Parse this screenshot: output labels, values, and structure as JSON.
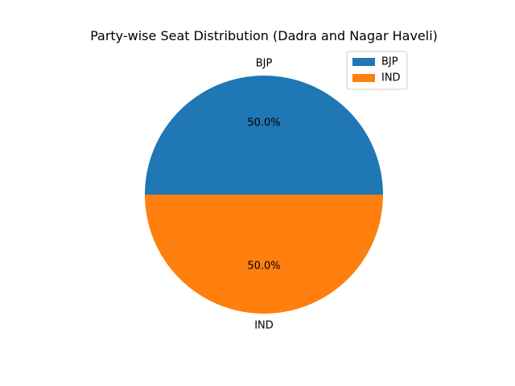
{
  "chart_data": {
    "type": "pie",
    "title": "Party-wise Seat Distribution (Dadra and Nagar Haveli)",
    "slices": [
      {
        "label": "BJP",
        "value": 1,
        "percent_label": "50.0%",
        "color": "#1f77b4"
      },
      {
        "label": "IND",
        "value": 1,
        "percent_label": "50.0%",
        "color": "#ff7f0e"
      }
    ],
    "legend": {
      "placement": "upper right",
      "entries": [
        "BJP",
        "IND"
      ]
    }
  }
}
